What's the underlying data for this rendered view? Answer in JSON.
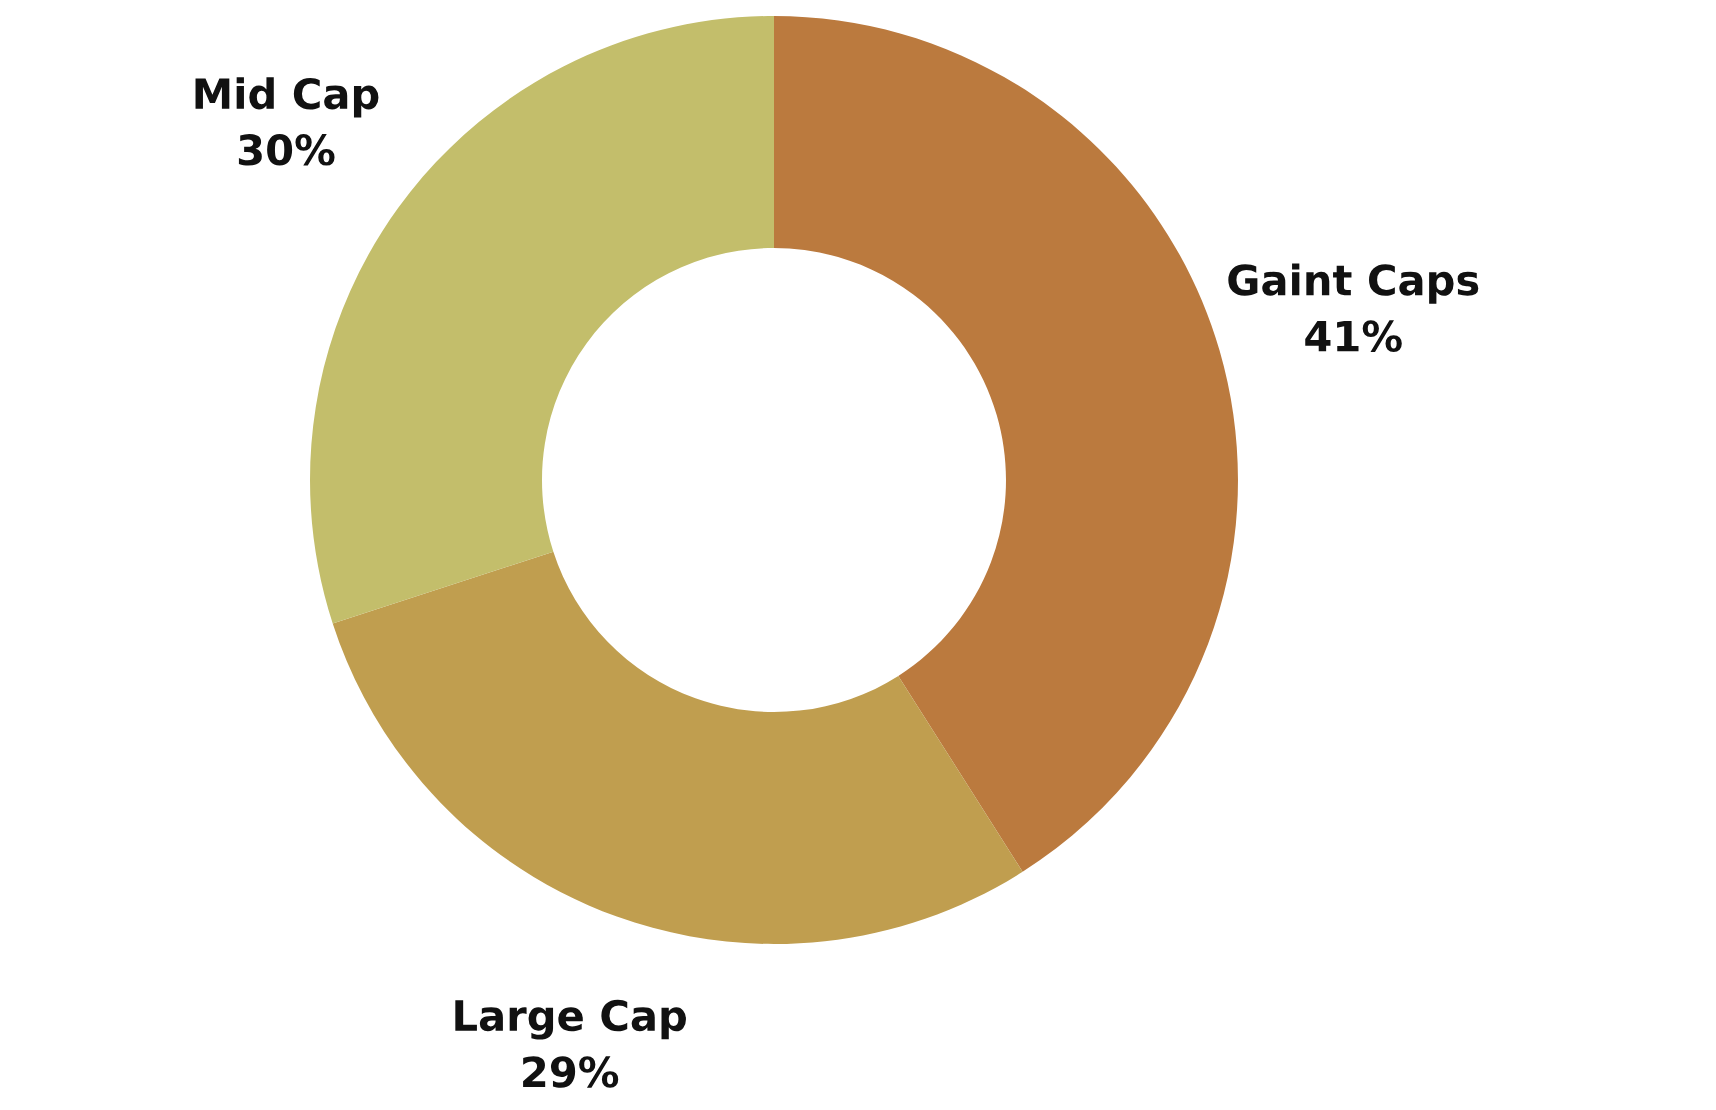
{
  "chart_data": {
    "type": "donut",
    "categories": [
      "Gaint Caps",
      "Large Cap",
      "Mid Cap"
    ],
    "values": [
      41,
      29,
      30
    ],
    "value_labels": [
      "41%",
      "29%",
      "30%"
    ],
    "colors": [
      "#bb7a3e",
      "#c09e4f",
      "#c3be6b"
    ],
    "legend": false
  }
}
